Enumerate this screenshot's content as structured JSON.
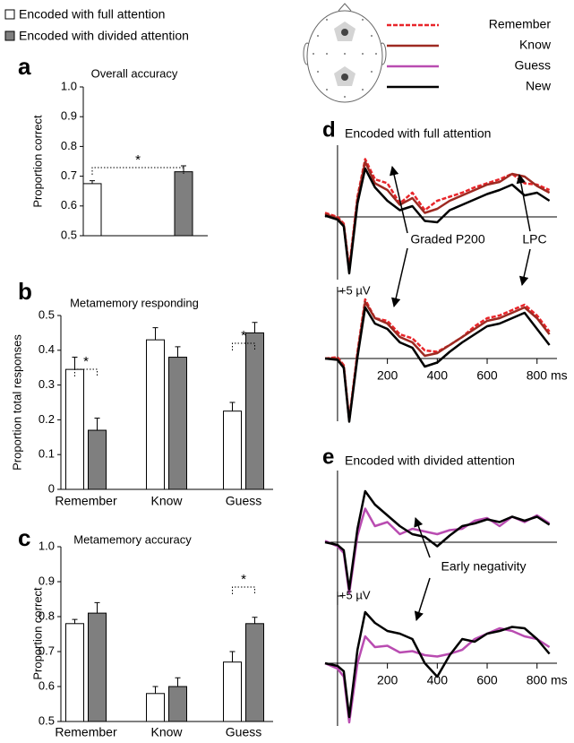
{
  "chart_data": [
    {
      "type": "bar",
      "panel": "a",
      "title": "Overall accuracy",
      "ylabel": "Proportion correct",
      "categories": [
        null
      ],
      "series": [
        {
          "name": "Encoded with full attention",
          "color": "#ffffff",
          "values": [
            0.675
          ],
          "errors": [
            0.01
          ]
        },
        {
          "name": "Encoded with divided attention",
          "color": "#7f7f7f",
          "values": [
            0.715
          ],
          "errors": [
            0.02
          ]
        }
      ],
      "ylim": [
        0.5,
        1.0
      ],
      "yticks": [
        0.5,
        0.6,
        0.7,
        0.8,
        0.9,
        {
          "value": 1,
          "label": "1.0"
        }
      ],
      "annotations": [
        "*"
      ]
    },
    {
      "type": "bar",
      "panel": "b",
      "title": "Metamemory responding",
      "ylabel": "Proportion total responses",
      "categories": [
        "Remember",
        "Know",
        "Guess"
      ],
      "category_colors": [
        "#e8252a",
        "#9e2a22",
        "#b94cb1"
      ],
      "series": [
        {
          "name": "Encoded with full attention",
          "color": "#ffffff",
          "values": [
            0.345,
            0.43,
            0.225
          ],
          "errors": [
            0.035,
            0.035,
            0.025
          ]
        },
        {
          "name": "Encoded with divided attention",
          "color": "#7f7f7f",
          "values": [
            0.17,
            0.38,
            0.45
          ],
          "errors": [
            0.035,
            0.03,
            0.03
          ]
        }
      ],
      "ylim": [
        0,
        0.5
      ],
      "yticks": [
        0,
        0.1,
        0.2,
        0.3,
        0.4,
        0.5
      ],
      "annotations": [
        "*",
        "*"
      ]
    },
    {
      "type": "bar",
      "panel": "c",
      "title": "Metamemory accuracy",
      "ylabel": "Proportion correct",
      "categories": [
        "Remember",
        "Know",
        "Guess"
      ],
      "category_colors": [
        "#e8252a",
        "#9e2a22",
        "#b94cb1"
      ],
      "series": [
        {
          "name": "Encoded with full attention",
          "color": "#ffffff",
          "values": [
            0.78,
            0.58,
            0.67
          ],
          "errors": [
            0.012,
            0.02,
            0.03
          ]
        },
        {
          "name": "Encoded with divided attention",
          "color": "#7f7f7f",
          "values": [
            0.81,
            0.6,
            0.78
          ],
          "errors": [
            0.03,
            0.025,
            0.018
          ]
        }
      ],
      "ylim": [
        0.5,
        1.0
      ],
      "yticks": [
        0.5,
        0.6,
        0.7,
        0.8,
        0.9,
        {
          "value": 1,
          "label": "1.0"
        }
      ],
      "annotations": [
        "*"
      ]
    },
    {
      "type": "line",
      "panel": "d",
      "title": "Encoded with full attention",
      "x": [
        -50,
        0,
        25,
        47,
        80,
        111,
        150,
        200,
        250,
        300,
        350,
        400,
        450,
        500,
        550,
        600,
        650,
        700,
        750,
        800,
        850
      ],
      "series": [
        {
          "name": "Remember",
          "color": "#e8252a",
          "dash": true,
          "values": [
            0.3,
            0,
            -0.5,
            -3.8,
            1.5,
            4.3,
            2.8,
            2.5,
            1.0,
            1.8,
            0.5,
            1.2,
            1.5,
            1.8,
            2.2,
            2.5,
            2.8,
            3.2,
            2.5,
            2.4,
            2.0
          ]
        },
        {
          "name": "Know",
          "color": "#9e2a22",
          "values": [
            0.2,
            -0.1,
            -0.6,
            -4.0,
            1.3,
            4.1,
            2.5,
            2.0,
            0.9,
            1.4,
            0.3,
            0.6,
            1.2,
            1.6,
            2.0,
            2.4,
            2.6,
            3.2,
            3.0,
            2.3,
            1.8
          ]
        },
        {
          "name": "New",
          "color": "#000000",
          "values": [
            0.1,
            -0.2,
            -0.7,
            -4.2,
            1.0,
            3.6,
            2.2,
            1.2,
            0.5,
            0.8,
            -0.3,
            -0.4,
            0.5,
            0.9,
            1.3,
            1.7,
            2.0,
            2.4,
            1.6,
            1.8,
            1.2
          ]
        }
      ],
      "xlim": [
        -50,
        880
      ],
      "ylim": [
        -5,
        5
      ],
      "annotations": [
        "Graded P200",
        "LPC"
      ]
    },
    {
      "type": "line",
      "x": [
        -50,
        0,
        25,
        47,
        80,
        111,
        150,
        200,
        250,
        300,
        350,
        400,
        450,
        500,
        550,
        600,
        650,
        700,
        750,
        800,
        850
      ],
      "series": [
        {
          "name": "Remember",
          "color": "#e8252a",
          "dash": true,
          "values": [
            0,
            0.1,
            -0.5,
            -4.5,
            0.5,
            4.4,
            3.0,
            2.8,
            1.8,
            1.5,
            0.6,
            0.5,
            1.0,
            1.6,
            2.4,
            3.0,
            3.2,
            3.6,
            4.0,
            3.2,
            2.0
          ]
        },
        {
          "name": "Know",
          "color": "#9e2a22",
          "values": [
            0,
            0,
            -0.6,
            -4.6,
            0.3,
            4.2,
            3.0,
            2.6,
            1.6,
            1.2,
            0.2,
            0.4,
            1.0,
            1.6,
            2.2,
            2.8,
            3.0,
            3.4,
            3.8,
            3.0,
            1.8
          ]
        },
        {
          "name": "New",
          "color": "#000000",
          "values": [
            0,
            -0.1,
            -0.7,
            -4.7,
            0.1,
            3.8,
            2.6,
            2.2,
            1.2,
            0.8,
            -0.6,
            -0.3,
            0.5,
            1.2,
            1.8,
            2.4,
            2.6,
            3.0,
            3.4,
            2.2,
            1.0
          ]
        }
      ],
      "xlim": [
        -50,
        880
      ],
      "ylim": [
        -5,
        5
      ],
      "xticks": [
        200,
        400,
        600,
        {
          "value": 800,
          "label": "800 ms"
        }
      ],
      "yticks": [
        {
          "value": 5,
          "label": "+5 µV"
        }
      ]
    },
    {
      "type": "line",
      "panel": "e",
      "title": "Encoded with divided attention",
      "x": [
        -50,
        0,
        25,
        47,
        80,
        111,
        150,
        200,
        250,
        300,
        350,
        400,
        450,
        500,
        550,
        600,
        650,
        700,
        750,
        800,
        850
      ],
      "series": [
        {
          "name": "Guess",
          "color": "#b94cb1",
          "values": [
            0.1,
            -0.3,
            -0.8,
            -3.8,
            0.5,
            2.5,
            1.2,
            1.5,
            0.6,
            1.0,
            0.8,
            0.6,
            0.9,
            1.0,
            1.6,
            1.8,
            1.2,
            1.9,
            1.5,
            2.0,
            1.4
          ]
        },
        {
          "name": "New",
          "color": "#000000",
          "values": [
            0,
            -0.2,
            -0.6,
            -3.5,
            1.0,
            3.8,
            2.8,
            2.0,
            1.2,
            0.6,
            0.4,
            -0.3,
            0.5,
            1.2,
            1.4,
            1.7,
            1.5,
            1.9,
            1.6,
            1.9,
            1.3
          ]
        }
      ],
      "xlim": [
        -50,
        880
      ],
      "ylim": [
        -5,
        5
      ],
      "annotations": [
        "Early negativity"
      ]
    },
    {
      "type": "line",
      "x": [
        -50,
        0,
        25,
        47,
        80,
        111,
        150,
        200,
        250,
        300,
        350,
        400,
        450,
        500,
        550,
        600,
        650,
        700,
        750,
        800,
        850
      ],
      "series": [
        {
          "name": "Guess",
          "color": "#b94cb1",
          "values": [
            0,
            -0.4,
            -1.0,
            -4.4,
            0,
            2.0,
            1.2,
            1.3,
            0.8,
            0.9,
            0.6,
            0.5,
            0.7,
            1.0,
            1.8,
            2.2,
            2.6,
            2.4,
            2.0,
            1.8,
            1.2
          ]
        },
        {
          "name": "New",
          "color": "#000000",
          "values": [
            0,
            -0.2,
            -0.6,
            -4.0,
            1.0,
            3.8,
            3.0,
            2.4,
            2.2,
            1.8,
            0.0,
            -1.0,
            0.6,
            1.8,
            1.6,
            2.2,
            2.4,
            2.7,
            2.6,
            1.8,
            0.7
          ]
        }
      ],
      "xlim": [
        -50,
        880
      ],
      "ylim": [
        -5,
        5
      ],
      "xticks": [
        200,
        400,
        600,
        {
          "value": 800,
          "label": "800 ms"
        }
      ],
      "yticks": [
        {
          "value": 5,
          "label": "+5 µV"
        }
      ]
    }
  ]
}
